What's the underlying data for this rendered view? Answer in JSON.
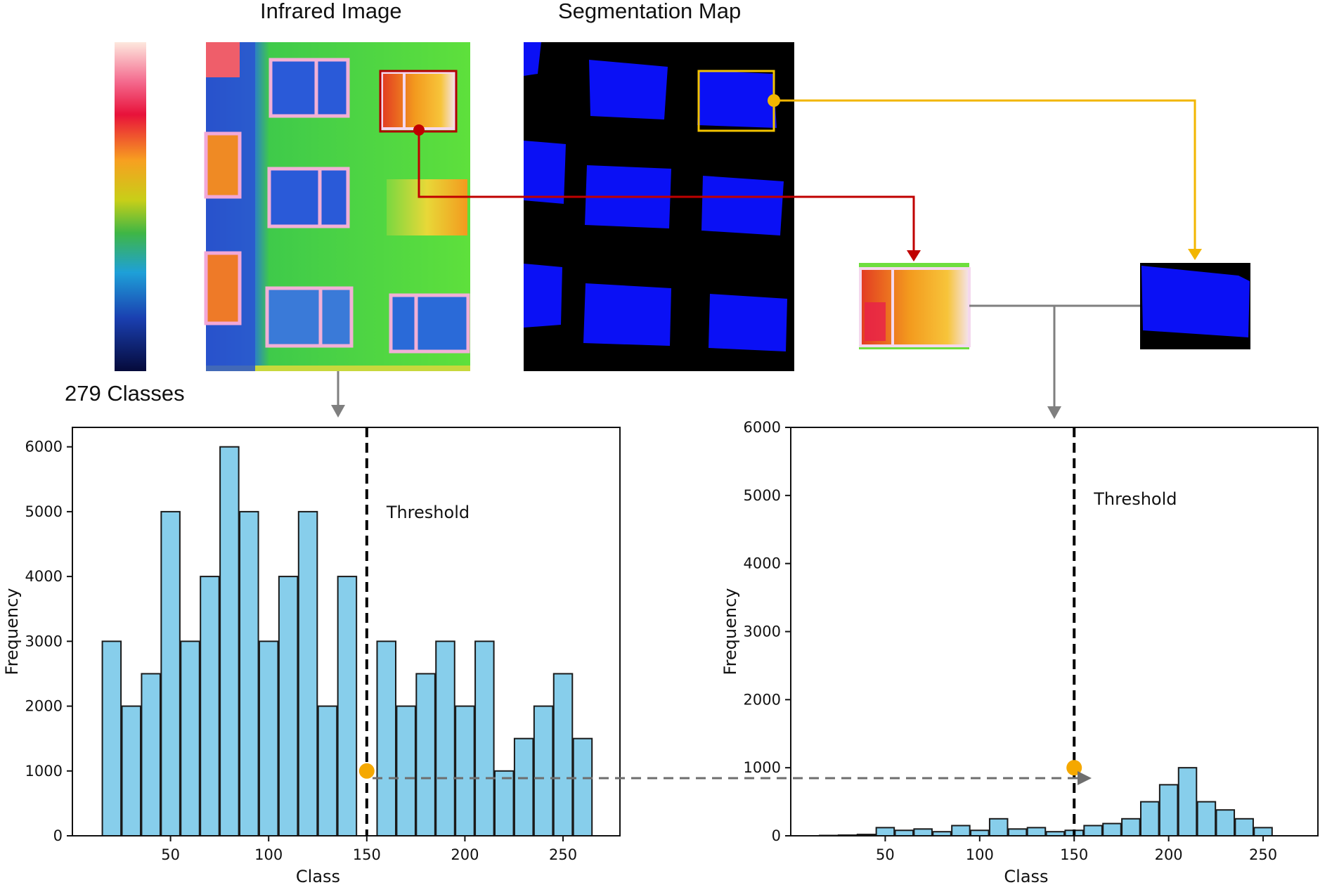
{
  "figure": {
    "infrared_title": "Infrared Image",
    "segmentation_title": "Segmentation Map",
    "classes_label": "279 Classes",
    "colors": {
      "bar_fill": "#87ceeb",
      "bar_stroke": "#1a1a1a",
      "red_arrow": "#c00000",
      "yellow_arrow": "#f2b600",
      "gray_arrow": "#7f7f7f",
      "threshold_dot": "#f5a800",
      "seg_blue": "#0a10f5",
      "seg_bg": "#000000"
    },
    "icons": [
      "colorbar-gradient",
      "infrared-thumbnail",
      "segmentation-thumbnail",
      "cropped-window-infrared",
      "cropped-window-mask"
    ]
  },
  "chart_data": [
    {
      "type": "bar",
      "xlabel": "Class",
      "ylabel": "Frequency",
      "xticks": [
        50,
        100,
        150,
        200,
        250
      ],
      "yticks": [
        0,
        1000,
        2000,
        3000,
        4000,
        5000,
        6000
      ],
      "xlim": [
        0,
        279
      ],
      "ylim": [
        0,
        6300
      ],
      "grid": false,
      "threshold": {
        "x": 150,
        "label": "Threshold",
        "style": "dashed",
        "marker_y": 1000
      },
      "x": [
        20,
        30,
        40,
        50,
        60,
        70,
        80,
        90,
        100,
        110,
        120,
        130,
        140,
        160,
        170,
        180,
        190,
        200,
        210,
        220,
        230,
        240,
        250,
        260
      ],
      "values": [
        3000,
        2000,
        2500,
        5000,
        3000,
        4000,
        6000,
        5000,
        3000,
        4000,
        5000,
        2000,
        4000,
        3000,
        2000,
        2500,
        3000,
        2000,
        3000,
        1000,
        1500,
        2000,
        2500,
        1500
      ]
    },
    {
      "type": "bar",
      "xlabel": "Class",
      "ylabel": "Frequency",
      "xticks": [
        50,
        100,
        150,
        200,
        250
      ],
      "yticks": [
        0,
        1000,
        2000,
        3000,
        4000,
        5000,
        6000
      ],
      "xlim": [
        0,
        279
      ],
      "ylim": [
        0,
        6000
      ],
      "grid": false,
      "threshold": {
        "x": 150,
        "label": "Threshold",
        "style": "dashed",
        "marker_y": 1000
      },
      "x": [
        20,
        30,
        40,
        50,
        60,
        70,
        80,
        90,
        100,
        110,
        120,
        130,
        140,
        150,
        160,
        170,
        180,
        190,
        200,
        210,
        220,
        230,
        240,
        250
      ],
      "values": [
        5,
        10,
        20,
        120,
        80,
        100,
        60,
        150,
        80,
        250,
        100,
        120,
        60,
        80,
        150,
        180,
        250,
        500,
        750,
        1000,
        500,
        380,
        250,
        120
      ]
    }
  ]
}
